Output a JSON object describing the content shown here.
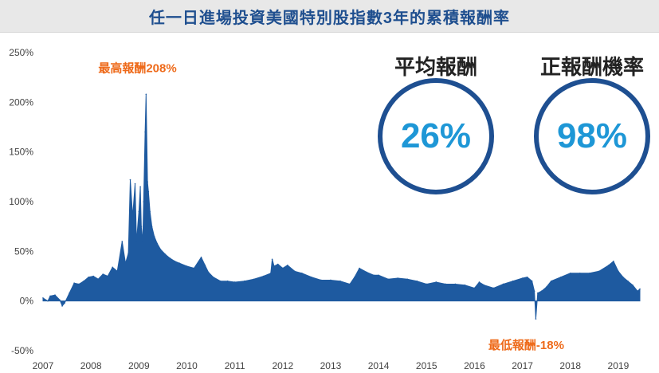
{
  "title": "任一日進場投資美國特別股指數3年的累積報酬率",
  "stats": [
    {
      "label": "平均報酬",
      "value": "26%"
    },
    {
      "label": "正報酬機率",
      "value": "98%"
    }
  ],
  "colors": {
    "series": "#1e5aa0",
    "annotation": "#ee6a1a",
    "ring": "#1e4f91",
    "stat_value": "#1e97d6",
    "title": "#1f4f8f"
  },
  "chart_data": {
    "type": "area",
    "title": "任一日進場投資美國特別股指數3年的累積報酬率",
    "xlabel": "",
    "ylabel": "",
    "ylim": [
      -50,
      250
    ],
    "xlim": [
      2007.0,
      2019.6
    ],
    "y_ticks": [
      -50,
      0,
      50,
      100,
      150,
      200,
      250
    ],
    "y_tick_labels": [
      "-50%",
      "0%",
      "50%",
      "100%",
      "150%",
      "200%",
      "250%"
    ],
    "x_ticks": [
      2007,
      2008,
      2009,
      2010,
      2011,
      2012,
      2013,
      2014,
      2015,
      2016,
      2017,
      2018,
      2019
    ],
    "x_tick_labels": [
      "2007",
      "2008",
      "2009",
      "2010",
      "2011",
      "2012",
      "2013",
      "2014",
      "2015",
      "2016",
      "2017",
      "2018",
      "2019"
    ],
    "grid": false,
    "legend": "none",
    "annotations": [
      {
        "text": "最高報酬208%",
        "x": 2009.17,
        "y": 208
      },
      {
        "text": "最低報酬-18%",
        "x": 2017.28,
        "y": -18
      }
    ],
    "series": [
      {
        "x": [
          2007.0,
          2007.1,
          2007.15,
          2007.25,
          2007.35,
          2007.4,
          2007.45,
          2007.55,
          2007.65,
          2007.75,
          2007.85,
          2007.95,
          2008.05,
          2008.15,
          2008.25,
          2008.35,
          2008.45,
          2008.55,
          2008.65,
          2008.72,
          2008.78,
          2008.82,
          2008.87,
          2008.92,
          2008.95,
          2009.0,
          2009.03,
          2009.05,
          2009.08,
          2009.1,
          2009.13,
          2009.15,
          2009.18,
          2009.2,
          2009.23,
          2009.27,
          2009.32,
          2009.38,
          2009.45,
          2009.55,
          2009.65,
          2009.75,
          2009.85,
          2010.0,
          2010.15,
          2010.3,
          2010.38,
          2010.45,
          2010.55,
          2010.7,
          2010.85,
          2011.0,
          2011.2,
          2011.4,
          2011.6,
          2011.75,
          2011.78,
          2011.82,
          2011.9,
          2012.0,
          2012.1,
          2012.25,
          2012.4,
          2012.6,
          2012.8,
          2013.0,
          2013.2,
          2013.4,
          2013.5,
          2013.6,
          2013.75,
          2013.9,
          2014.0,
          2014.2,
          2014.4,
          2014.6,
          2014.8,
          2015.0,
          2015.2,
          2015.4,
          2015.6,
          2015.8,
          2016.0,
          2016.1,
          2016.2,
          2016.4,
          2016.6,
          2016.8,
          2017.0,
          2017.1,
          2017.2,
          2017.25,
          2017.28,
          2017.32,
          2017.4,
          2017.5,
          2017.6,
          2017.8,
          2018.0,
          2018.2,
          2018.4,
          2018.6,
          2018.8,
          2018.9,
          2019.0,
          2019.1,
          2019.2,
          2019.3,
          2019.4,
          2019.45
        ],
        "y": [
          3,
          0,
          5,
          6,
          1,
          -5,
          -2,
          8,
          18,
          17,
          20,
          24,
          25,
          22,
          27,
          25,
          34,
          30,
          60,
          38,
          48,
          122,
          85,
          118,
          60,
          90,
          115,
          75,
          60,
          100,
          170,
          208,
          120,
          110,
          90,
          75,
          65,
          58,
          52,
          47,
          43,
          40,
          38,
          35,
          33,
          44,
          36,
          29,
          24,
          20,
          20,
          19,
          20,
          22,
          25,
          28,
          42,
          35,
          37,
          33,
          36,
          30,
          28,
          24,
          21,
          21,
          20,
          17,
          24,
          33,
          29,
          26,
          26,
          22,
          23,
          22,
          20,
          17,
          19,
          17,
          17,
          16,
          13,
          19,
          16,
          13,
          17,
          20,
          23,
          24,
          20,
          10,
          -18,
          8,
          10,
          14,
          20,
          24,
          28,
          28,
          28,
          30,
          36,
          40,
          30,
          24,
          20,
          16,
          10,
          12
        ]
      }
    ]
  }
}
